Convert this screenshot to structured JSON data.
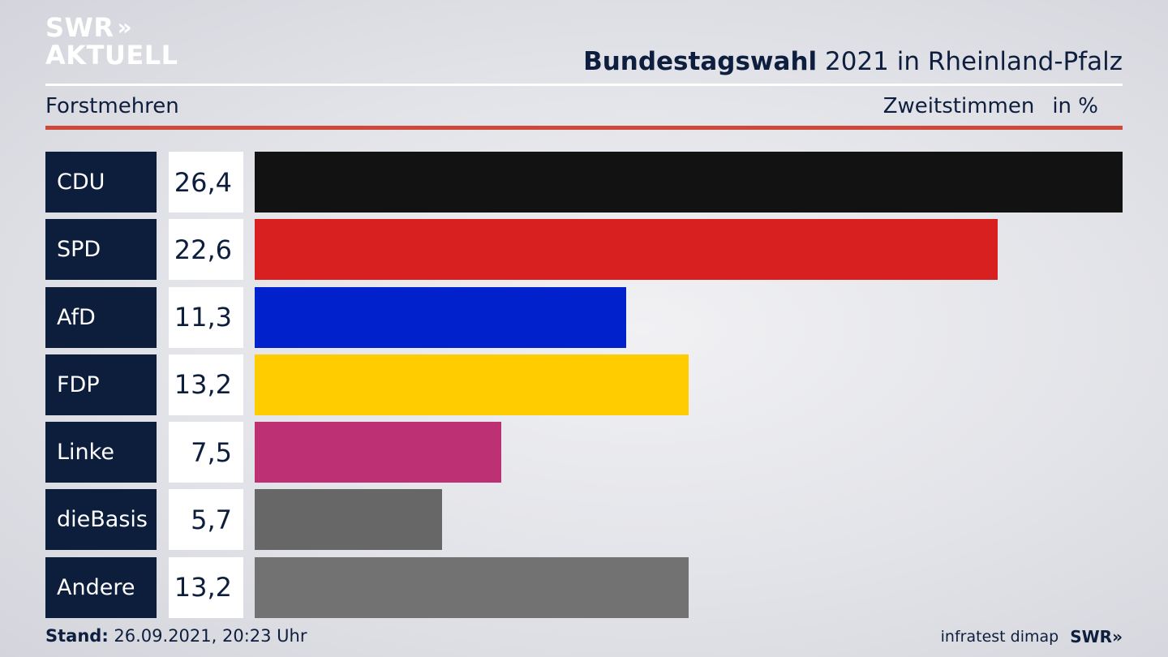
{
  "brand": {
    "line1": "SWR",
    "line2": "AKTUELL",
    "chevrons": "»"
  },
  "header": {
    "title_bold": "Bundestagswahl",
    "title_rest": " 2021 in Rheinland-Pfalz",
    "region": "Forstmehren",
    "metric": "Zweitstimmen",
    "unit": "in %"
  },
  "footer": {
    "stand_label": "Stand:",
    "stand_value": " 26.09.2021, 20:23 Uhr",
    "source": "infratest dimap",
    "logo": "SWR»"
  },
  "colors": {
    "accent_rule": "#d0473b",
    "label_bg": "#0d1e3d"
  },
  "chart_data": {
    "type": "bar",
    "orientation": "horizontal",
    "categories": [
      "CDU",
      "SPD",
      "AfD",
      "FDP",
      "Linke",
      "dieBasis",
      "Andere"
    ],
    "values": [
      26.4,
      22.6,
      11.3,
      13.2,
      7.5,
      5.7,
      13.2
    ],
    "value_labels": [
      "26,4",
      "22,6",
      "11,3",
      "13,2",
      "7,5",
      "5,7",
      "13,2"
    ],
    "colors": [
      "#121212",
      "#d82020",
      "#0021cc",
      "#ffcc00",
      "#bd3073",
      "#676767",
      "#727272"
    ],
    "xlim": [
      0,
      26.4
    ],
    "title": "Bundestagswahl 2021 in Rheinland-Pfalz",
    "xlabel": "Zweitstimmen in %",
    "ylabel": ""
  }
}
